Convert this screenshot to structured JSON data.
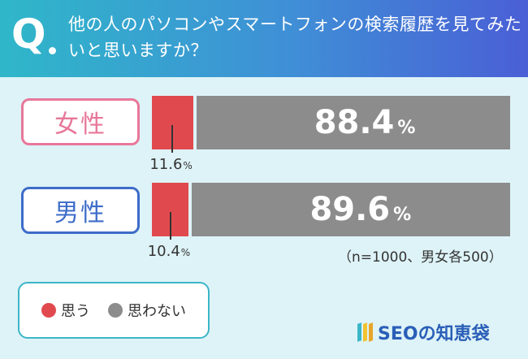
{
  "question": {
    "mark": "Q",
    "text": "他の人のパソコンやスマートフォンの検索履歴を見てみたいと思いますか？"
  },
  "colors": {
    "yes": "#e04a4e",
    "no": "#8c8c8c",
    "female_label": "#e8779a",
    "male_label": "#3d6cc9",
    "header_gradient": [
      "#2fb7c9",
      "#4a5fd6"
    ]
  },
  "chart_data": {
    "type": "bar",
    "orientation": "horizontal-stacked-100",
    "categories": [
      "女性",
      "男性"
    ],
    "series": [
      {
        "name": "思う",
        "values": [
          11.6,
          10.4
        ]
      },
      {
        "name": "思わない",
        "values": [
          88.4,
          89.6
        ]
      }
    ],
    "unit": "%",
    "note": "（n=1000、男女各500）"
  },
  "rows": [
    {
      "label": "女性",
      "yes_value": "11.6",
      "no_value": "88.4",
      "unit": "%"
    },
    {
      "label": "男性",
      "yes_value": "10.4",
      "no_value": "89.6",
      "unit": "%"
    }
  ],
  "legend": [
    {
      "label": "思う",
      "color": "#e04a4e"
    },
    {
      "label": "思わない",
      "color": "#8c8c8c"
    }
  ],
  "logo": {
    "text": "SEOの知恵袋",
    "icon": "stripes-icon"
  }
}
